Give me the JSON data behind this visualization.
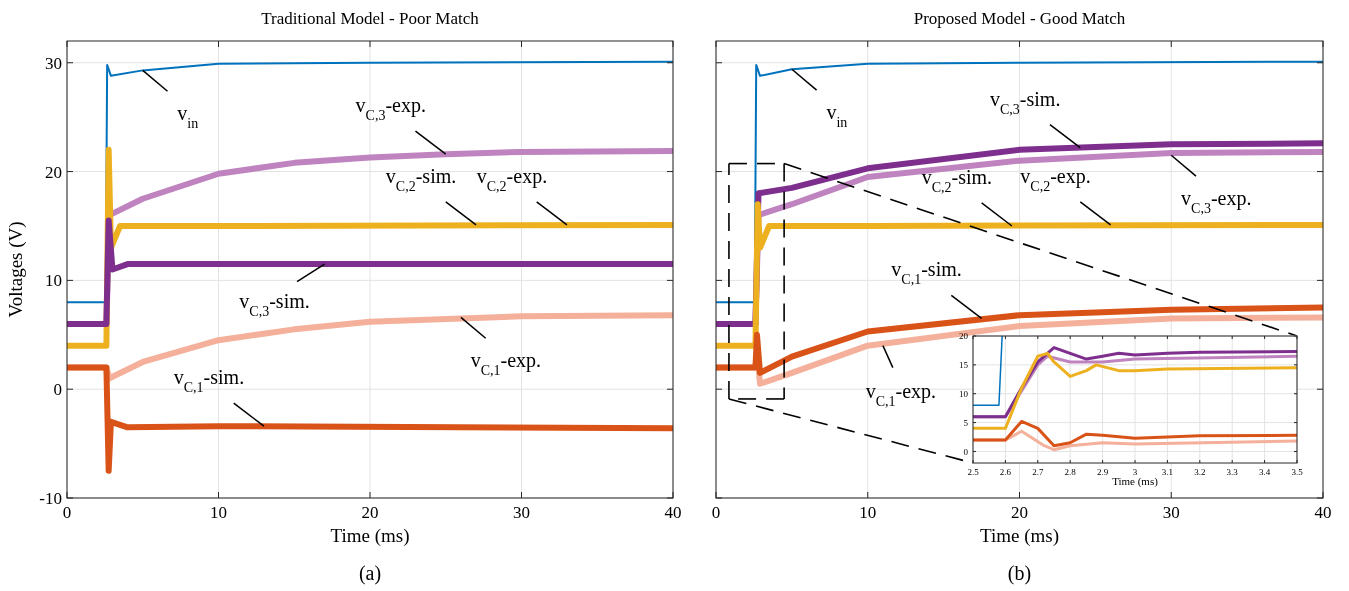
{
  "chart_data": [
    {
      "type": "line",
      "title": "Traditional Model - Poor Match",
      "xlabel": "Time (ms)",
      "ylabel": "Voltages (V)",
      "xlim": [
        0,
        40
      ],
      "ylim": [
        -10,
        32
      ],
      "xticks": [
        0,
        10,
        20,
        30,
        40
      ],
      "yticks": [
        -10,
        0,
        10,
        20,
        30
      ],
      "grid": true,
      "series": [
        {
          "color": "#0072bd",
          "x": [
            0,
            2.55,
            2.65,
            2.9,
            5,
            10,
            20,
            40
          ],
          "values": [
            8,
            8,
            29.8,
            28.8,
            29.3,
            29.9,
            30,
            30.1
          ]
        },
        {
          "color": "#bf84bf",
          "x": [
            0,
            2.6,
            2.8,
            5,
            10,
            15,
            20,
            25,
            30,
            40
          ],
          "values": [
            6,
            6,
            16,
            17.5,
            19.8,
            20.8,
            21.3,
            21.6,
            21.8,
            21.9
          ]
        },
        {
          "color": "#edb120",
          "x": [
            0,
            2.6,
            2.75,
            2.9,
            3.5,
            10,
            40
          ],
          "values": [
            4,
            4,
            22,
            13,
            15,
            15,
            15.1
          ]
        },
        {
          "color": "#7e2f8e",
          "x": [
            0,
            2.6,
            2.75,
            3,
            4,
            10,
            40
          ],
          "values": [
            6,
            6,
            15.5,
            11,
            11.5,
            11.5,
            11.5
          ]
        },
        {
          "color": "#f4b09a",
          "x": [
            0,
            2.6,
            2.8,
            5,
            10,
            15,
            20,
            30,
            40
          ],
          "values": [
            2,
            2,
            1,
            2.5,
            4.5,
            5.5,
            6.2,
            6.7,
            6.8
          ]
        },
        {
          "color": "#d95319",
          "x": [
            0,
            2.6,
            2.75,
            2.9,
            4,
            10,
            40
          ],
          "values": [
            2,
            2,
            -7.5,
            -3,
            -3.5,
            -3.4,
            -3.6
          ]
        }
      ],
      "annotations": [
        {
          "text": "v$_{in}$",
          "x": 5,
          "y": 29.3
        },
        {
          "text": "v$_{C,3}$-exp.",
          "x": 25,
          "y": 21.6
        },
        {
          "text": "v$_{C,2}$-sim.",
          "x": 27,
          "y": 15.1
        },
        {
          "text": "v$_{C,2}$-exp.",
          "x": 33,
          "y": 15.1
        },
        {
          "text": "v$_{C,3}$-sim.",
          "x": 17,
          "y": 11.5
        },
        {
          "text": "v$_{C,1}$-exp.",
          "x": 26,
          "y": 6.6
        },
        {
          "text": "v$_{C,1}$-sim.",
          "x": 13,
          "y": -3.4
        },
        "(a)"
      ]
    },
    {
      "type": "line",
      "title": "Proposed Model - Good Match",
      "xlabel": "Time (ms)",
      "xlim": [
        0,
        40
      ],
      "ylim": [
        -10,
        32
      ],
      "xticks": [
        0,
        10,
        20,
        30,
        40
      ],
      "yticks": [
        -10,
        0,
        10,
        20,
        30
      ],
      "grid": true,
      "tick_labels": "x",
      "series": [
        {
          "color": "#0072bd",
          "x": [
            0,
            2.55,
            2.65,
            2.9,
            5,
            10,
            20,
            40
          ],
          "values": [
            8,
            8,
            29.8,
            28.8,
            29.4,
            29.9,
            30,
            30.1
          ]
        },
        {
          "color": "#bf84bf",
          "x": [
            0,
            2.6,
            2.8,
            5,
            10,
            20,
            30,
            40
          ],
          "values": [
            6,
            6,
            16,
            17,
            19.5,
            21,
            21.7,
            21.8
          ]
        },
        {
          "color": "#7e2f8e",
          "x": [
            0,
            2.6,
            2.8,
            5,
            10,
            20,
            30,
            40
          ],
          "values": [
            6,
            6,
            18,
            18.5,
            20.3,
            22,
            22.5,
            22.6
          ]
        },
        {
          "color": "#edb120",
          "x": [
            0,
            2.6,
            2.75,
            2.9,
            3.5,
            10,
            40
          ],
          "values": [
            4,
            4,
            17,
            13,
            15,
            15,
            15.1
          ]
        },
        {
          "color": "#f4b09a",
          "x": [
            0,
            2.6,
            2.7,
            2.9,
            5,
            10,
            20,
            30,
            40
          ],
          "values": [
            2,
            2,
            3.5,
            0.5,
            1.5,
            4,
            5.8,
            6.5,
            6.6
          ]
        },
        {
          "color": "#d95319",
          "x": [
            0,
            2.6,
            2.7,
            2.9,
            5,
            10,
            20,
            30,
            40
          ],
          "values": [
            2,
            2,
            5,
            1.5,
            3,
            5.3,
            6.8,
            7.3,
            7.5
          ]
        }
      ],
      "annotations": [
        {
          "text": "v$_{in}$",
          "x": 5,
          "y": 29.4
        },
        {
          "text": "v$_{C,3}$-sim.",
          "x": 24,
          "y": 22.2
        },
        {
          "text": "v$_{C,3}$-exp.",
          "x": 30,
          "y": 21.5
        },
        {
          "text": "v$_{C,2}$-sim.",
          "x": 19.5,
          "y": 15
        },
        {
          "text": "v$_{C,2}$-exp.",
          "x": 26,
          "y": 15.1
        },
        {
          "text": "v$_{C,1}$-sim.",
          "x": 17.5,
          "y": 6.5
        },
        {
          "text": "v$_{C,1}$-exp.",
          "x": 11,
          "y": 4
        },
        "(b)"
      ]
    },
    {
      "type": "line",
      "xlabel": "Time (ms)",
      "xlim": [
        2.5,
        3.5
      ],
      "ylim": [
        -2,
        20
      ],
      "xticks": [
        2.5,
        2.6,
        2.7,
        2.8,
        2.9,
        3,
        3.1,
        3.2,
        3.3,
        3.4,
        3.5
      ],
      "yticks": [
        0,
        5,
        10,
        15,
        20
      ],
      "grid": true,
      "series": [
        {
          "color": "#0072bd",
          "x": [
            2.5,
            2.58,
            2.59
          ],
          "values": [
            8,
            8,
            20
          ]
        },
        {
          "color": "#bf84bf",
          "x": [
            2.5,
            2.6,
            2.7,
            2.73,
            2.8,
            2.9,
            3,
            3.5
          ],
          "values": [
            6,
            6,
            15,
            16.5,
            15.5,
            15.5,
            16,
            16.5
          ]
        },
        {
          "color": "#7e2f8e",
          "x": [
            2.5,
            2.6,
            2.65,
            2.7,
            2.75,
            2.8,
            2.85,
            2.9,
            2.95,
            3,
            3.1,
            3.2,
            3.5
          ],
          "values": [
            6,
            6,
            11,
            15.5,
            18,
            17,
            16,
            16.5,
            17,
            16.7,
            17,
            17.2,
            17.3
          ]
        },
        {
          "color": "#edb120",
          "x": [
            2.5,
            2.6,
            2.65,
            2.7,
            2.73,
            2.75,
            2.8,
            2.85,
            2.88,
            2.95,
            3,
            3.1,
            3.5
          ],
          "values": [
            4,
            4,
            11,
            16.5,
            17,
            15.5,
            13,
            14,
            15,
            14,
            14,
            14.3,
            14.5
          ]
        },
        {
          "color": "#f4b09a",
          "x": [
            2.5,
            2.6,
            2.65,
            2.72,
            2.75,
            2.8,
            2.9,
            3,
            3.5
          ],
          "values": [
            2,
            2,
            3.5,
            1,
            0.3,
            1,
            1.5,
            1.3,
            1.8
          ]
        },
        {
          "color": "#d95319",
          "x": [
            2.5,
            2.6,
            2.65,
            2.7,
            2.75,
            2.8,
            2.85,
            2.9,
            3,
            3.2,
            3.5
          ],
          "values": [
            2,
            2,
            5.2,
            4,
            1,
            1.5,
            3,
            2.8,
            2.3,
            2.7,
            2.8
          ]
        }
      ]
    }
  ]
}
